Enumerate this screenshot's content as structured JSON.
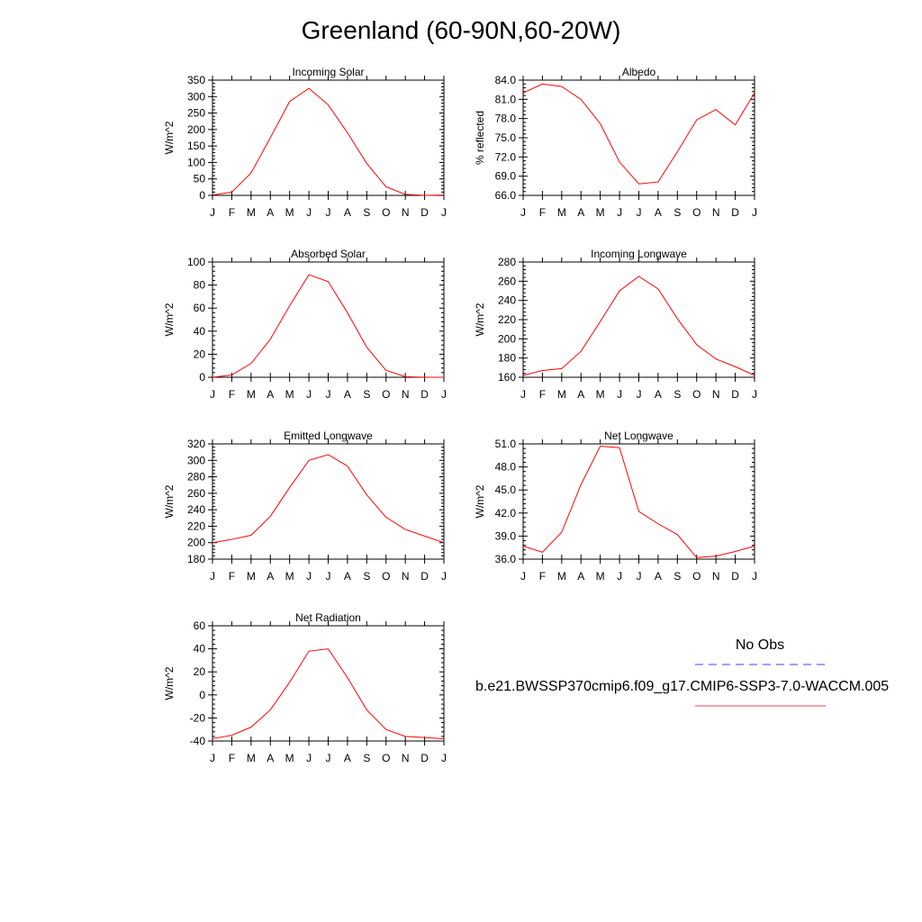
{
  "title": "Greenland (60-90N,60-20W)",
  "colors": {
    "model": "#ff0000",
    "obs": "#0000ff",
    "axis": "#000000"
  },
  "legend": {
    "obs_label": "No Obs",
    "model_label": "b.e21.BWSSP370cmip6.f09_g17.CMIP6-SSP3-7.0-WACCM.005"
  },
  "chart_data": [
    {
      "type": "line",
      "title": "Incoming Solar",
      "ylabel": "W/m^2",
      "ylim": [
        0,
        350
      ],
      "yticks": [
        0,
        50,
        100,
        150,
        200,
        250,
        300,
        350
      ],
      "ytick_labels": [
        "0",
        "50",
        "100",
        "150",
        "200",
        "250",
        "300",
        "350"
      ],
      "x": [
        "J",
        "F",
        "M",
        "A",
        "M",
        "J",
        "J",
        "A",
        "S",
        "O",
        "N",
        "D",
        "J"
      ],
      "series": [
        {
          "values": [
            1,
            10,
            68,
            175,
            285,
            325,
            275,
            190,
            97,
            26,
            3,
            0,
            1
          ]
        }
      ]
    },
    {
      "type": "line",
      "title": "Albedo",
      "ylabel": "% reflected",
      "ylim": [
        66.0,
        84.0
      ],
      "yticks": [
        66,
        69,
        72,
        75,
        78,
        81,
        84
      ],
      "ytick_labels": [
        "66.0",
        "69.0",
        "72.0",
        "75.0",
        "78.0",
        "81.0",
        "84.0"
      ],
      "x": [
        "J",
        "F",
        "M",
        "A",
        "M",
        "J",
        "J",
        "A",
        "S",
        "O",
        "N",
        "D",
        "J"
      ],
      "series": [
        {
          "values": [
            82.0,
            83.4,
            83.0,
            81.0,
            77.2,
            71.2,
            67.8,
            68.1,
            72.8,
            77.8,
            79.4,
            77.0,
            82.0
          ]
        }
      ]
    },
    {
      "type": "line",
      "title": "Absorbed Solar",
      "ylabel": "W/m^2",
      "ylim": [
        0,
        100
      ],
      "yticks": [
        0,
        20,
        40,
        60,
        80,
        100
      ],
      "ytick_labels": [
        "0",
        "20",
        "40",
        "60",
        "80",
        "100"
      ],
      "x": [
        "J",
        "F",
        "M",
        "A",
        "M",
        "J",
        "J",
        "A",
        "S",
        "O",
        "N",
        "D",
        "J"
      ],
      "series": [
        {
          "values": [
            0,
            2,
            12,
            33,
            62,
            89,
            83,
            56,
            26,
            6,
            0.5,
            0,
            0
          ]
        }
      ]
    },
    {
      "type": "line",
      "title": "Incoming Longwave",
      "ylabel": "W/m^2",
      "ylim": [
        160,
        280
      ],
      "yticks": [
        160,
        180,
        200,
        220,
        240,
        260,
        280
      ],
      "ytick_labels": [
        "160",
        "180",
        "200",
        "220",
        "240",
        "260",
        "280"
      ],
      "x": [
        "J",
        "F",
        "M",
        "A",
        "M",
        "J",
        "J",
        "A",
        "S",
        "O",
        "N",
        "D",
        "J"
      ],
      "series": [
        {
          "values": [
            162,
            167,
            169,
            187,
            218,
            250,
            265,
            252,
            221,
            194,
            179,
            171,
            162
          ]
        }
      ]
    },
    {
      "type": "line",
      "title": "Emitted Longwave",
      "ylabel": "W/m^2",
      "ylim": [
        180,
        320
      ],
      "yticks": [
        180,
        200,
        220,
        240,
        260,
        280,
        300,
        320
      ],
      "ytick_labels": [
        "180",
        "200",
        "220",
        "240",
        "260",
        "280",
        "300",
        "320"
      ],
      "x": [
        "J",
        "F",
        "M",
        "A",
        "M",
        "J",
        "J",
        "A",
        "S",
        "O",
        "N",
        "D",
        "J"
      ],
      "series": [
        {
          "values": [
            200,
            204,
            209,
            232,
            267,
            300,
            307,
            293,
            258,
            231,
            216,
            208,
            200
          ]
        }
      ]
    },
    {
      "type": "line",
      "title": "Net Longwave",
      "ylabel": "W/m^2",
      "ylim": [
        36.0,
        51.0
      ],
      "yticks": [
        36,
        39,
        42,
        45,
        48,
        51
      ],
      "ytick_labels": [
        "36.0",
        "39.0",
        "42.0",
        "45.0",
        "48.0",
        "51.0"
      ],
      "x": [
        "J",
        "F",
        "M",
        "A",
        "M",
        "J",
        "J",
        "A",
        "S",
        "O",
        "N",
        "D",
        "J"
      ],
      "series": [
        {
          "values": [
            37.7,
            36.9,
            39.5,
            45.7,
            50.7,
            50.5,
            42.2,
            40.6,
            39.2,
            36.2,
            36.4,
            37.0,
            37.7
          ]
        }
      ]
    },
    {
      "type": "line",
      "title": "Net Radiation",
      "ylabel": "W/m^2",
      "ylim": [
        -40,
        60
      ],
      "yticks": [
        -40,
        -20,
        0,
        20,
        40,
        60
      ],
      "ytick_labels": [
        "-40",
        "-20",
        "0",
        "20",
        "40",
        "60"
      ],
      "x": [
        "J",
        "F",
        "M",
        "A",
        "M",
        "J",
        "J",
        "A",
        "S",
        "O",
        "N",
        "D",
        "J"
      ],
      "series": [
        {
          "values": [
            -38,
            -35,
            -28,
            -13,
            11,
            38,
            40,
            15,
            -13,
            -30,
            -36,
            -37,
            -38
          ]
        }
      ]
    }
  ]
}
